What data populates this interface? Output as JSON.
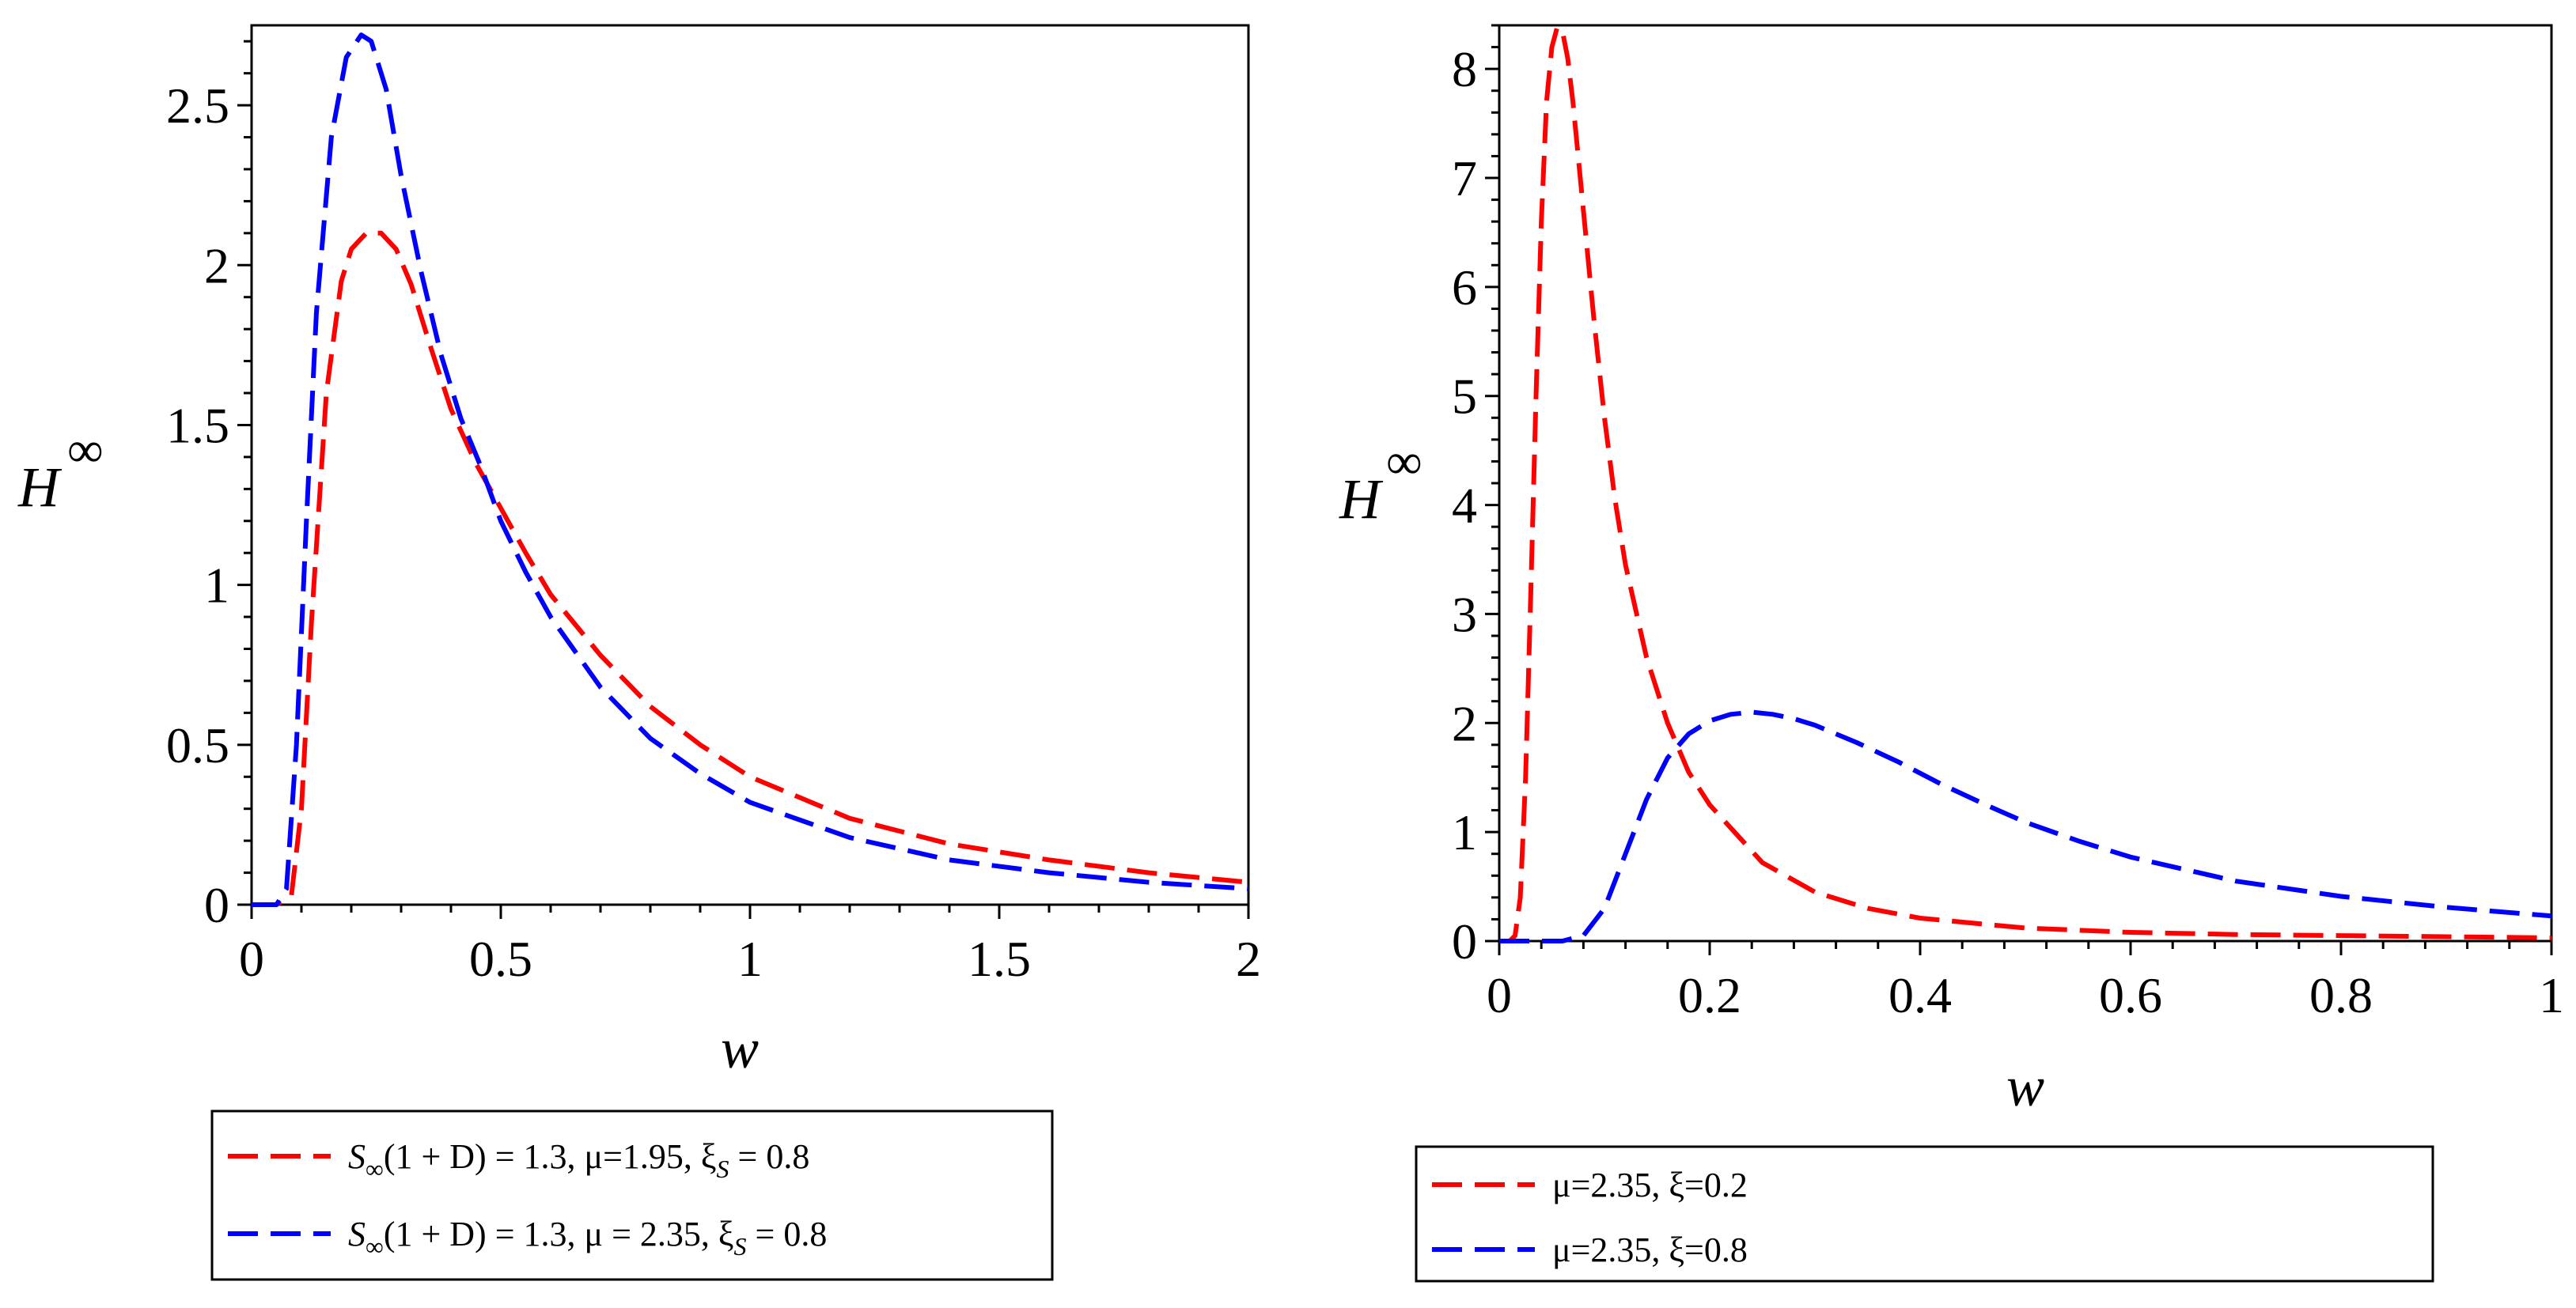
{
  "chart_data": [
    {
      "type": "line",
      "title": "",
      "xlabel": "w",
      "ylabel": "H",
      "ylabel_superscript": "∞",
      "xlim": [
        0,
        2
      ],
      "ylim": [
        0,
        2.75
      ],
      "xticks": [
        0,
        0.5,
        1,
        1.5,
        2
      ],
      "xtick_labels": [
        "0",
        "0.5",
        "1",
        "1.5",
        "2"
      ],
      "yticks": [
        0,
        0.5,
        1,
        1.5,
        2,
        2.5
      ],
      "ytick_labels": [
        "0",
        "0.5",
        "1",
        "1.5",
        "2",
        "2.5"
      ],
      "legend_position": "below",
      "series": [
        {
          "name": "S∞(1 + D) = 1.3, μ=1.95, ξS = 0.8",
          "legend_parts": {
            "pre": "S",
            "sub": "∞",
            "mid": "(1 + D) = 1.3, μ=1.95, ξ",
            "sub2": "S",
            "post": " = 0.8"
          },
          "color": "#ff0000",
          "x": [
            0,
            0.05,
            0.08,
            0.1,
            0.12,
            0.15,
            0.18,
            0.2,
            0.23,
            0.26,
            0.29,
            0.32,
            0.36,
            0.4,
            0.45,
            0.5,
            0.55,
            0.6,
            0.7,
            0.8,
            0.9,
            1.0,
            1.2,
            1.4,
            1.6,
            1.8,
            2.0
          ],
          "y": [
            0,
            0,
            0.03,
            0.3,
            0.88,
            1.6,
            1.95,
            2.05,
            2.1,
            2.1,
            2.05,
            1.94,
            1.74,
            1.55,
            1.38,
            1.24,
            1.1,
            0.97,
            0.78,
            0.62,
            0.5,
            0.4,
            0.27,
            0.19,
            0.14,
            0.1,
            0.07
          ]
        },
        {
          "name": "S∞(1 + D) = 1.3, μ = 2.35, ξS = 0.8",
          "legend_parts": {
            "pre": "S",
            "sub": "∞",
            "mid": "(1 + D) = 1.3, μ = 2.35, ξ",
            "sub2": "S",
            "post": " = 0.8"
          },
          "color": "#0000ff",
          "x": [
            0,
            0.05,
            0.07,
            0.09,
            0.11,
            0.13,
            0.16,
            0.19,
            0.22,
            0.24,
            0.27,
            0.3,
            0.34,
            0.38,
            0.42,
            0.46,
            0.5,
            0.55,
            0.6,
            0.7,
            0.8,
            0.9,
            1.0,
            1.2,
            1.4,
            1.6,
            1.8,
            2.0
          ],
          "y": [
            0,
            0,
            0.05,
            0.5,
            1.2,
            1.85,
            2.4,
            2.65,
            2.72,
            2.7,
            2.55,
            2.28,
            1.98,
            1.72,
            1.52,
            1.37,
            1.2,
            1.04,
            0.9,
            0.68,
            0.52,
            0.41,
            0.32,
            0.21,
            0.14,
            0.1,
            0.07,
            0.05
          ]
        }
      ]
    },
    {
      "type": "line",
      "title": "",
      "xlabel": "w",
      "ylabel": "H",
      "ylabel_superscript": "∞",
      "xlim": [
        0,
        1
      ],
      "ylim": [
        0,
        8.4
      ],
      "xticks": [
        0,
        0.2,
        0.4,
        0.6,
        0.8,
        1
      ],
      "xtick_labels": [
        "0",
        "0.2",
        "0.4",
        "0.6",
        "0.8",
        "1"
      ],
      "yticks": [
        0,
        1,
        2,
        3,
        4,
        5,
        6,
        7,
        8
      ],
      "ytick_labels": [
        "0",
        "1",
        "2",
        "3",
        "4",
        "5",
        "6",
        "7",
        "8"
      ],
      "legend_position": "below",
      "series": [
        {
          "name": "μ=2.35, ξ=0.2",
          "color": "#ff0000",
          "x": [
            0,
            0.01,
            0.015,
            0.02,
            0.025,
            0.03,
            0.035,
            0.04,
            0.045,
            0.05,
            0.055,
            0.06,
            0.065,
            0.07,
            0.08,
            0.09,
            0.1,
            0.11,
            0.12,
            0.14,
            0.16,
            0.18,
            0.2,
            0.25,
            0.3,
            0.35,
            0.4,
            0.5,
            0.6,
            0.7,
            0.8,
            0.9,
            1.0
          ],
          "y": [
            0,
            0,
            0.05,
            0.4,
            1.5,
            3.2,
            5.0,
            6.6,
            7.7,
            8.2,
            8.38,
            8.35,
            8.1,
            7.7,
            6.7,
            5.7,
            4.8,
            4.05,
            3.45,
            2.6,
            2.0,
            1.55,
            1.25,
            0.72,
            0.45,
            0.3,
            0.21,
            0.12,
            0.08,
            0.06,
            0.05,
            0.04,
            0.03
          ]
        },
        {
          "name": "μ=2.35, ξ=0.8",
          "color": "#0000ff",
          "x": [
            0,
            0.06,
            0.08,
            0.1,
            0.12,
            0.14,
            0.16,
            0.18,
            0.2,
            0.22,
            0.24,
            0.26,
            0.28,
            0.3,
            0.34,
            0.38,
            0.42,
            0.46,
            0.5,
            0.55,
            0.6,
            0.7,
            0.8,
            0.9,
            1.0
          ],
          "y": [
            0,
            0,
            0.05,
            0.3,
            0.8,
            1.3,
            1.68,
            1.9,
            2.02,
            2.08,
            2.1,
            2.08,
            2.04,
            1.98,
            1.82,
            1.64,
            1.44,
            1.26,
            1.09,
            0.92,
            0.77,
            0.55,
            0.41,
            0.31,
            0.23
          ]
        }
      ]
    }
  ]
}
